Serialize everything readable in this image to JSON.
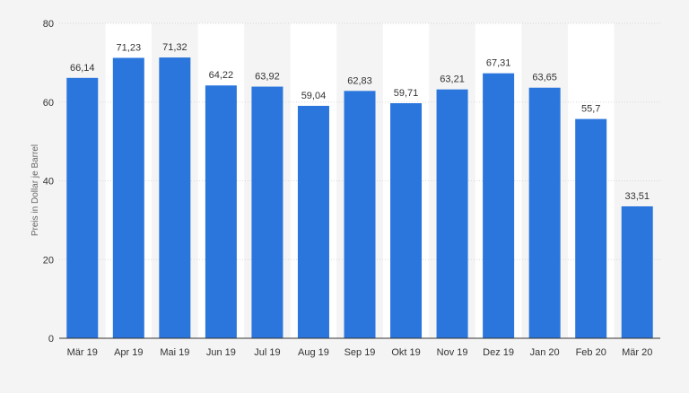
{
  "chart_data": {
    "type": "bar",
    "categories": [
      "Mär 19",
      "Apr 19",
      "Mai 19",
      "Jun 19",
      "Jul 19",
      "Aug 19",
      "Sep 19",
      "Okt 19",
      "Nov 19",
      "Dez 19",
      "Jan 20",
      "Feb 20",
      "Mär 20"
    ],
    "values": [
      66.14,
      71.23,
      71.32,
      64.22,
      63.92,
      59.04,
      62.83,
      59.71,
      63.21,
      67.31,
      63.65,
      55.7,
      33.51
    ],
    "value_labels": [
      "66,14",
      "71,23",
      "71,32",
      "64,22",
      "63,92",
      "59,04",
      "62,83",
      "59,71",
      "63,21",
      "67,31",
      "63,65",
      "55,7",
      "33,51"
    ],
    "title": "",
    "xlabel": "",
    "ylabel": "Preis in Dollar je Barrel",
    "ylim": [
      0,
      80
    ],
    "yticks": [
      0,
      20,
      40,
      60,
      80
    ],
    "grid": true,
    "alternating_column_shading": true,
    "colors": {
      "bar": "#2a76dd",
      "column_band": "#ffffff",
      "background": "#f4f4f4",
      "grid": "#d9d9d9",
      "text": "#333333"
    }
  }
}
